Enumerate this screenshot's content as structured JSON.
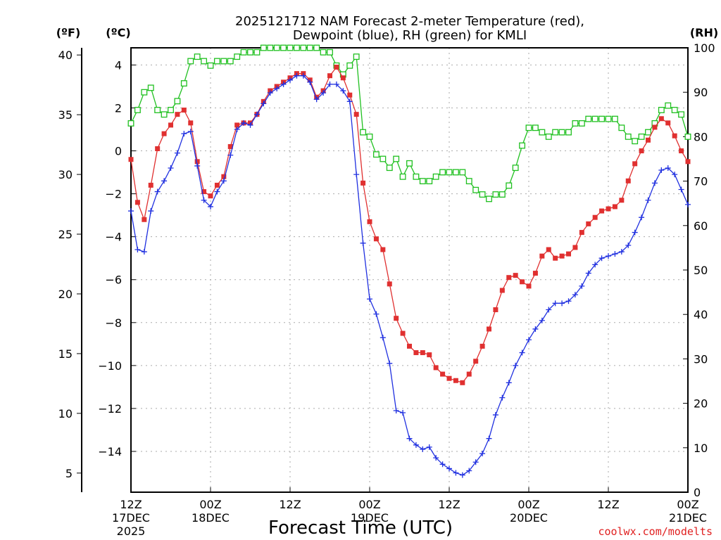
{
  "title_line1": "2025121712 NAM Forecast 2-meter Temperature (red),",
  "title_line2": "Dewpoint (blue), RH (green) for KMLI",
  "units": {
    "fahrenheit": "(ºF)",
    "celsius": "(ºC)",
    "rh": "(RH)"
  },
  "credit": "coolwx.com/modelts",
  "colors": {
    "temperature": "#e03030",
    "dewpoint": "#2030e0",
    "rh": "#20c020"
  },
  "chart_data": {
    "type": "line",
    "title": "2025121712 NAM Forecast 2-meter Temperature (red), Dewpoint (blue), RH (green) for KMLI",
    "xlabel": "Forecast Time (UTC)",
    "ylabel_left_outer": "(ºF)",
    "ylabel_left_inner": "(ºC)",
    "ylabel_right": "(RH)",
    "x_unit": "forecast hour (0 = 12Z 17DEC 2025)",
    "xlim": [
      0,
      84
    ],
    "ylim_celsius": [
      -15.9,
      4.8
    ],
    "ylim_fahrenheit": [
      3.4,
      40.6
    ],
    "ylim_rh": [
      0,
      100
    ],
    "grid": true,
    "x_ticks": [
      {
        "hour": 0,
        "lines": [
          "12Z",
          "17DEC",
          "2025"
        ]
      },
      {
        "hour": 12,
        "lines": [
          "00Z",
          "18DEC"
        ]
      },
      {
        "hour": 24,
        "lines": [
          "12Z"
        ]
      },
      {
        "hour": 36,
        "lines": [
          "00Z",
          "19DEC"
        ]
      },
      {
        "hour": 48,
        "lines": [
          "12Z"
        ]
      },
      {
        "hour": 60,
        "lines": [
          "00Z",
          "20DEC"
        ]
      },
      {
        "hour": 72,
        "lines": [
          "12Z"
        ]
      },
      {
        "hour": 84,
        "lines": [
          "00Z",
          "21DEC"
        ]
      }
    ],
    "y_ticks_celsius": [
      "4",
      "2",
      "0",
      "−2",
      "−4",
      "−6",
      "−8",
      "−10",
      "−12",
      "−14"
    ],
    "y_ticks_celsius_values": [
      4,
      2,
      0,
      -2,
      -4,
      -6,
      -8,
      -10,
      -12,
      -14
    ],
    "y_ticks_fahrenheit": [
      "40",
      "35",
      "30",
      "25",
      "20",
      "15",
      "10",
      "5"
    ],
    "y_ticks_fahrenheit_values": [
      40,
      35,
      30,
      25,
      20,
      15,
      10,
      5
    ],
    "y_ticks_rh": [
      "100",
      "90",
      "80",
      "70",
      "60",
      "50",
      "40",
      "30",
      "20",
      "10",
      "0"
    ],
    "y_ticks_rh_values": [
      100,
      90,
      80,
      70,
      60,
      50,
      40,
      30,
      20,
      10,
      0
    ],
    "series": [
      {
        "name": "2-meter Temperature",
        "unit": "°C",
        "marker": "filled-square",
        "color": "#e03030",
        "points": [
          [
            0,
            -0.4
          ],
          [
            1,
            -2.4
          ],
          [
            2,
            -3.2
          ],
          [
            3,
            -1.6
          ],
          [
            4,
            0.1
          ],
          [
            5,
            0.8
          ],
          [
            6,
            1.2
          ],
          [
            7,
            1.7
          ],
          [
            8,
            1.9
          ],
          [
            9,
            1.3
          ],
          [
            10,
            -0.5
          ],
          [
            11,
            -1.9
          ],
          [
            12,
            -2.1
          ],
          [
            13,
            -1.6
          ],
          [
            14,
            -1.2
          ],
          [
            15,
            0.2
          ],
          [
            16,
            1.2
          ],
          [
            17,
            1.3
          ],
          [
            18,
            1.3
          ],
          [
            19,
            1.7
          ],
          [
            20,
            2.3
          ],
          [
            21,
            2.8
          ],
          [
            22,
            3.0
          ],
          [
            23,
            3.2
          ],
          [
            24,
            3.4
          ],
          [
            25,
            3.6
          ],
          [
            26,
            3.6
          ],
          [
            27,
            3.3
          ],
          [
            28,
            2.5
          ],
          [
            29,
            2.8
          ],
          [
            30,
            3.5
          ],
          [
            31,
            3.9
          ],
          [
            32,
            3.4
          ],
          [
            33,
            2.6
          ],
          [
            34,
            1.7
          ],
          [
            35,
            -1.5
          ],
          [
            36,
            -3.3
          ],
          [
            37,
            -4.1
          ],
          [
            38,
            -4.6
          ],
          [
            39,
            -6.2
          ],
          [
            40,
            -7.8
          ],
          [
            41,
            -8.5
          ],
          [
            42,
            -9.1
          ],
          [
            43,
            -9.4
          ],
          [
            44,
            -9.4
          ],
          [
            45,
            -9.5
          ],
          [
            46,
            -10.1
          ],
          [
            47,
            -10.4
          ],
          [
            48,
            -10.6
          ],
          [
            49,
            -10.7
          ],
          [
            50,
            -10.8
          ],
          [
            51,
            -10.4
          ],
          [
            52,
            -9.8
          ],
          [
            53,
            -9.1
          ],
          [
            54,
            -8.3
          ],
          [
            55,
            -7.4
          ],
          [
            56,
            -6.5
          ],
          [
            57,
            -5.9
          ],
          [
            58,
            -5.8
          ],
          [
            59,
            -6.1
          ],
          [
            60,
            -6.3
          ],
          [
            61,
            -5.7
          ],
          [
            62,
            -4.9
          ],
          [
            63,
            -4.6
          ],
          [
            64,
            -5.0
          ],
          [
            65,
            -4.9
          ],
          [
            66,
            -4.8
          ],
          [
            67,
            -4.5
          ],
          [
            68,
            -3.8
          ],
          [
            69,
            -3.4
          ],
          [
            70,
            -3.1
          ],
          [
            71,
            -2.8
          ],
          [
            72,
            -2.7
          ],
          [
            73,
            -2.6
          ],
          [
            74,
            -2.3
          ],
          [
            75,
            -1.4
          ],
          [
            76,
            -0.6
          ],
          [
            77,
            0.0
          ],
          [
            78,
            0.5
          ],
          [
            79,
            1.1
          ],
          [
            80,
            1.5
          ],
          [
            81,
            1.3
          ],
          [
            82,
            0.7
          ],
          [
            83,
            0.0
          ],
          [
            84,
            -0.5
          ]
        ]
      },
      {
        "name": "Dewpoint",
        "unit": "°C",
        "marker": "plus",
        "color": "#2030e0",
        "points": [
          [
            0,
            -2.8
          ],
          [
            1,
            -4.6
          ],
          [
            2,
            -4.7
          ],
          [
            3,
            -2.8
          ],
          [
            4,
            -1.9
          ],
          [
            5,
            -1.4
          ],
          [
            6,
            -0.8
          ],
          [
            7,
            -0.1
          ],
          [
            8,
            0.8
          ],
          [
            9,
            0.9
          ],
          [
            10,
            -0.7
          ],
          [
            11,
            -2.3
          ],
          [
            12,
            -2.6
          ],
          [
            13,
            -1.9
          ],
          [
            14,
            -1.4
          ],
          [
            15,
            -0.2
          ],
          [
            16,
            1.0
          ],
          [
            17,
            1.3
          ],
          [
            18,
            1.2
          ],
          [
            19,
            1.7
          ],
          [
            20,
            2.2
          ],
          [
            21,
            2.7
          ],
          [
            22,
            2.9
          ],
          [
            23,
            3.1
          ],
          [
            24,
            3.3
          ],
          [
            25,
            3.5
          ],
          [
            26,
            3.5
          ],
          [
            27,
            3.2
          ],
          [
            28,
            2.4
          ],
          [
            29,
            2.7
          ],
          [
            30,
            3.1
          ],
          [
            31,
            3.1
          ],
          [
            32,
            2.8
          ],
          [
            33,
            2.3
          ],
          [
            34,
            -1.1
          ],
          [
            35,
            -4.3
          ],
          [
            36,
            -6.9
          ],
          [
            37,
            -7.6
          ],
          [
            38,
            -8.7
          ],
          [
            39,
            -9.9
          ],
          [
            40,
            -12.1
          ],
          [
            41,
            -12.2
          ],
          [
            42,
            -13.4
          ],
          [
            43,
            -13.7
          ],
          [
            44,
            -13.9
          ],
          [
            45,
            -13.8
          ],
          [
            46,
            -14.3
          ],
          [
            47,
            -14.6
          ],
          [
            48,
            -14.8
          ],
          [
            49,
            -15.0
          ],
          [
            50,
            -15.1
          ],
          [
            51,
            -14.9
          ],
          [
            52,
            -14.5
          ],
          [
            53,
            -14.1
          ],
          [
            54,
            -13.4
          ],
          [
            55,
            -12.3
          ],
          [
            56,
            -11.5
          ],
          [
            57,
            -10.8
          ],
          [
            58,
            -10.0
          ],
          [
            59,
            -9.4
          ],
          [
            60,
            -8.8
          ],
          [
            61,
            -8.3
          ],
          [
            62,
            -7.9
          ],
          [
            63,
            -7.4
          ],
          [
            64,
            -7.1
          ],
          [
            65,
            -7.1
          ],
          [
            66,
            -7.0
          ],
          [
            67,
            -6.7
          ],
          [
            68,
            -6.3
          ],
          [
            69,
            -5.7
          ],
          [
            70,
            -5.3
          ],
          [
            71,
            -5.0
          ],
          [
            72,
            -4.9
          ],
          [
            73,
            -4.8
          ],
          [
            74,
            -4.7
          ],
          [
            75,
            -4.4
          ],
          [
            76,
            -3.8
          ],
          [
            77,
            -3.1
          ],
          [
            78,
            -2.3
          ],
          [
            79,
            -1.5
          ],
          [
            80,
            -0.9
          ],
          [
            81,
            -0.8
          ],
          [
            82,
            -1.1
          ],
          [
            83,
            -1.8
          ],
          [
            84,
            -2.5
          ]
        ]
      },
      {
        "name": "Relative Humidity",
        "unit": "%",
        "marker": "open-square",
        "color": "#20c020",
        "points": [
          [
            0,
            83
          ],
          [
            1,
            86
          ],
          [
            2,
            90
          ],
          [
            3,
            91
          ],
          [
            4,
            86
          ],
          [
            5,
            85
          ],
          [
            6,
            86
          ],
          [
            7,
            88
          ],
          [
            8,
            92
          ],
          [
            9,
            97
          ],
          [
            10,
            98
          ],
          [
            11,
            97
          ],
          [
            12,
            96
          ],
          [
            13,
            97
          ],
          [
            14,
            97
          ],
          [
            15,
            97
          ],
          [
            16,
            98
          ],
          [
            17,
            99
          ],
          [
            18,
            99
          ],
          [
            19,
            99
          ],
          [
            20,
            100
          ],
          [
            21,
            100
          ],
          [
            22,
            100
          ],
          [
            23,
            100
          ],
          [
            24,
            100
          ],
          [
            25,
            100
          ],
          [
            26,
            100
          ],
          [
            27,
            100
          ],
          [
            28,
            100
          ],
          [
            29,
            99
          ],
          [
            30,
            99
          ],
          [
            31,
            96
          ],
          [
            32,
            94
          ],
          [
            33,
            96
          ],
          [
            34,
            98
          ],
          [
            35,
            81
          ],
          [
            36,
            80
          ],
          [
            37,
            76
          ],
          [
            38,
            75
          ],
          [
            39,
            73
          ],
          [
            40,
            75
          ],
          [
            41,
            71
          ],
          [
            42,
            74
          ],
          [
            43,
            71
          ],
          [
            44,
            70
          ],
          [
            45,
            70
          ],
          [
            46,
            71
          ],
          [
            47,
            72
          ],
          [
            48,
            72
          ],
          [
            49,
            72
          ],
          [
            50,
            72
          ],
          [
            51,
            70
          ],
          [
            52,
            68
          ],
          [
            53,
            67
          ],
          [
            54,
            66
          ],
          [
            55,
            67
          ],
          [
            56,
            67
          ],
          [
            57,
            69
          ],
          [
            58,
            73
          ],
          [
            59,
            78
          ],
          [
            60,
            82
          ],
          [
            61,
            82
          ],
          [
            62,
            81
          ],
          [
            63,
            80
          ],
          [
            64,
            81
          ],
          [
            65,
            81
          ],
          [
            66,
            81
          ],
          [
            67,
            83
          ],
          [
            68,
            83
          ],
          [
            69,
            84
          ],
          [
            70,
            84
          ],
          [
            71,
            84
          ],
          [
            72,
            84
          ],
          [
            73,
            84
          ],
          [
            74,
            82
          ],
          [
            75,
            80
          ],
          [
            76,
            79
          ],
          [
            77,
            80
          ],
          [
            78,
            81
          ],
          [
            79,
            83
          ],
          [
            80,
            86
          ],
          [
            81,
            87
          ],
          [
            82,
            86
          ],
          [
            83,
            85
          ],
          [
            84,
            80
          ]
        ]
      }
    ]
  }
}
